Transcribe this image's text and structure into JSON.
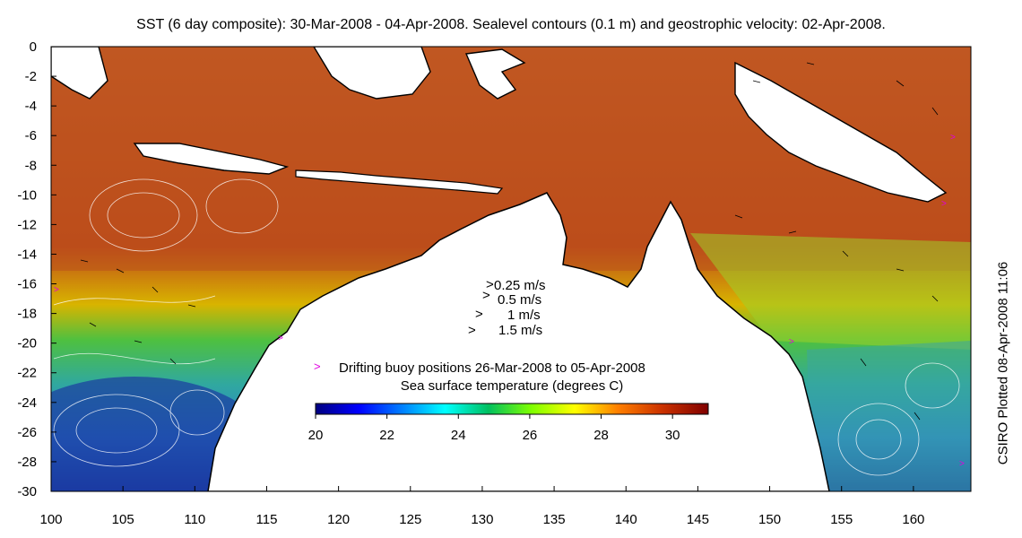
{
  "title": "SST (6 day composite): 30-Mar-2008 - 04-Apr-2008. Sealevel contours (0.1 m) and geostrophic velocity: 02-Apr-2008.",
  "side_label": "CSIRO Plotted 08-Apr-2008 11:06",
  "map": {
    "lon_range": [
      100,
      164
    ],
    "lat_range": [
      -30,
      0
    ],
    "x_ticks": [
      "100",
      "105",
      "110",
      "115",
      "120",
      "125",
      "130",
      "135",
      "140",
      "145",
      "150",
      "155",
      "160"
    ],
    "y_ticks": [
      "0",
      "-2",
      "-4",
      "-6",
      "-8",
      "-10",
      "-12",
      "-14",
      "-16",
      "-18",
      "-20",
      "-22",
      "-24",
      "-26",
      "-28",
      "-30"
    ],
    "land_color": "#ffffff",
    "coast_color": "#000000"
  },
  "velocity_key": [
    "0.25 m/s",
    "0.5 m/s",
    "1 m/s",
    "1.5 m/s"
  ],
  "buoy_legend": {
    "marker": ">",
    "marker_color": "#e000e0",
    "text": "Drifting buoy positions 26-Mar-2008 to 05-Apr-2008"
  },
  "colorbar": {
    "title": "Sea surface temperature (degrees C)",
    "range": [
      20,
      31
    ],
    "tick_values": [
      20,
      22,
      24,
      26,
      28,
      30
    ],
    "tick_labels": [
      "20",
      "22",
      "24",
      "26",
      "28",
      "30"
    ],
    "colormap": [
      "#00007f",
      "#0000ff",
      "#007fff",
      "#00ffff",
      "#00c060",
      "#7fff00",
      "#ffff00",
      "#ff7f00",
      "#cc3300",
      "#800000"
    ]
  }
}
